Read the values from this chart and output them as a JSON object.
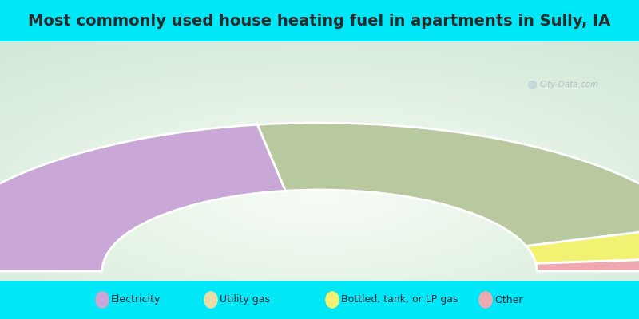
{
  "title": "Most commonly used house heating fuel in apartments in Sully, IA",
  "segments": [
    {
      "label": "Electricity",
      "value": 45,
      "color": "#c9a8d8"
    },
    {
      "label": "Utility gas",
      "value": 45,
      "color": "#b8c9a0"
    },
    {
      "label": "Bottled, tank, or LP gas",
      "value": 7,
      "color": "#f2f272"
    },
    {
      "label": "Other",
      "value": 3,
      "color": "#f0a8b0"
    }
  ],
  "legend_marker_colors": [
    "#c9a8d8",
    "#e8dca8",
    "#f2f272",
    "#f0a8b0"
  ],
  "title_bg_color": "#00e8f8",
  "title_fontsize": 14,
  "title_color": "#2a2a2a",
  "chart_bg_top": "#f0faf4",
  "chart_bg_bottom": "#c8ead8",
  "legend_labels": [
    "Electricity",
    "Utility gas",
    "Bottled, tank, or LP gas",
    "Other"
  ],
  "watermark": "City-Data.com"
}
